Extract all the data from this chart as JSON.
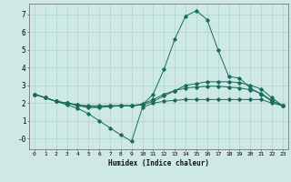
{
  "xlabel": "Humidex (Indice chaleur)",
  "bg_color": "#cde8e5",
  "grid_color": "#aed4d0",
  "line_color": "#1a6b5a",
  "xlim": [
    -0.5,
    23.5
  ],
  "ylim": [
    -0.6,
    7.6
  ],
  "xticks": [
    0,
    1,
    2,
    3,
    4,
    5,
    6,
    7,
    8,
    9,
    10,
    11,
    12,
    13,
    14,
    15,
    16,
    17,
    18,
    19,
    20,
    21,
    22,
    23
  ],
  "yticks": [
    0,
    1,
    2,
    3,
    4,
    5,
    6,
    7
  ],
  "ytick_labels": [
    "-0",
    "1",
    "2",
    "3",
    "4",
    "5",
    "6",
    "7"
  ],
  "lines": [
    {
      "x": [
        0,
        1,
        2,
        3,
        4,
        5,
        6,
        7,
        8,
        9,
        10,
        11,
        12,
        13,
        14,
        15,
        16,
        17,
        18,
        19,
        20,
        21,
        22,
        23
      ],
      "y": [
        2.5,
        2.3,
        2.1,
        1.9,
        1.7,
        1.4,
        1.0,
        0.6,
        0.2,
        -0.15,
        1.75,
        2.0,
        2.1,
        2.15,
        2.2,
        2.2,
        2.2,
        2.2,
        2.2,
        2.2,
        2.2,
        2.2,
        2.0,
        1.85
      ]
    },
    {
      "x": [
        0,
        1,
        2,
        3,
        4,
        5,
        6,
        7,
        8,
        9,
        10,
        11,
        12,
        13,
        14,
        15,
        16,
        17,
        18,
        19,
        20,
        21,
        22,
        23
      ],
      "y": [
        2.5,
        2.3,
        2.1,
        2.0,
        1.85,
        1.75,
        1.75,
        1.8,
        1.85,
        1.85,
        1.9,
        2.5,
        3.9,
        5.6,
        6.9,
        7.2,
        6.7,
        5.0,
        3.5,
        3.4,
        2.85,
        2.5,
        2.1,
        1.85
      ]
    },
    {
      "x": [
        0,
        1,
        2,
        3,
        4,
        5,
        6,
        7,
        8,
        9,
        10,
        11,
        12,
        13,
        14,
        15,
        16,
        17,
        18,
        19,
        20,
        21,
        22,
        23
      ],
      "y": [
        2.5,
        2.3,
        2.1,
        2.0,
        1.9,
        1.8,
        1.8,
        1.85,
        1.85,
        1.85,
        1.9,
        2.1,
        2.4,
        2.7,
        3.0,
        3.1,
        3.2,
        3.2,
        3.2,
        3.15,
        3.0,
        2.8,
        2.3,
        1.85
      ]
    },
    {
      "x": [
        0,
        1,
        2,
        3,
        4,
        5,
        6,
        7,
        8,
        9,
        10,
        11,
        12,
        13,
        14,
        15,
        16,
        17,
        18,
        19,
        20,
        21,
        22,
        23
      ],
      "y": [
        2.5,
        2.3,
        2.1,
        2.0,
        1.9,
        1.85,
        1.85,
        1.85,
        1.85,
        1.85,
        1.95,
        2.2,
        2.5,
        2.7,
        2.85,
        2.9,
        2.95,
        2.95,
        2.9,
        2.85,
        2.75,
        2.55,
        2.15,
        1.85
      ]
    }
  ]
}
